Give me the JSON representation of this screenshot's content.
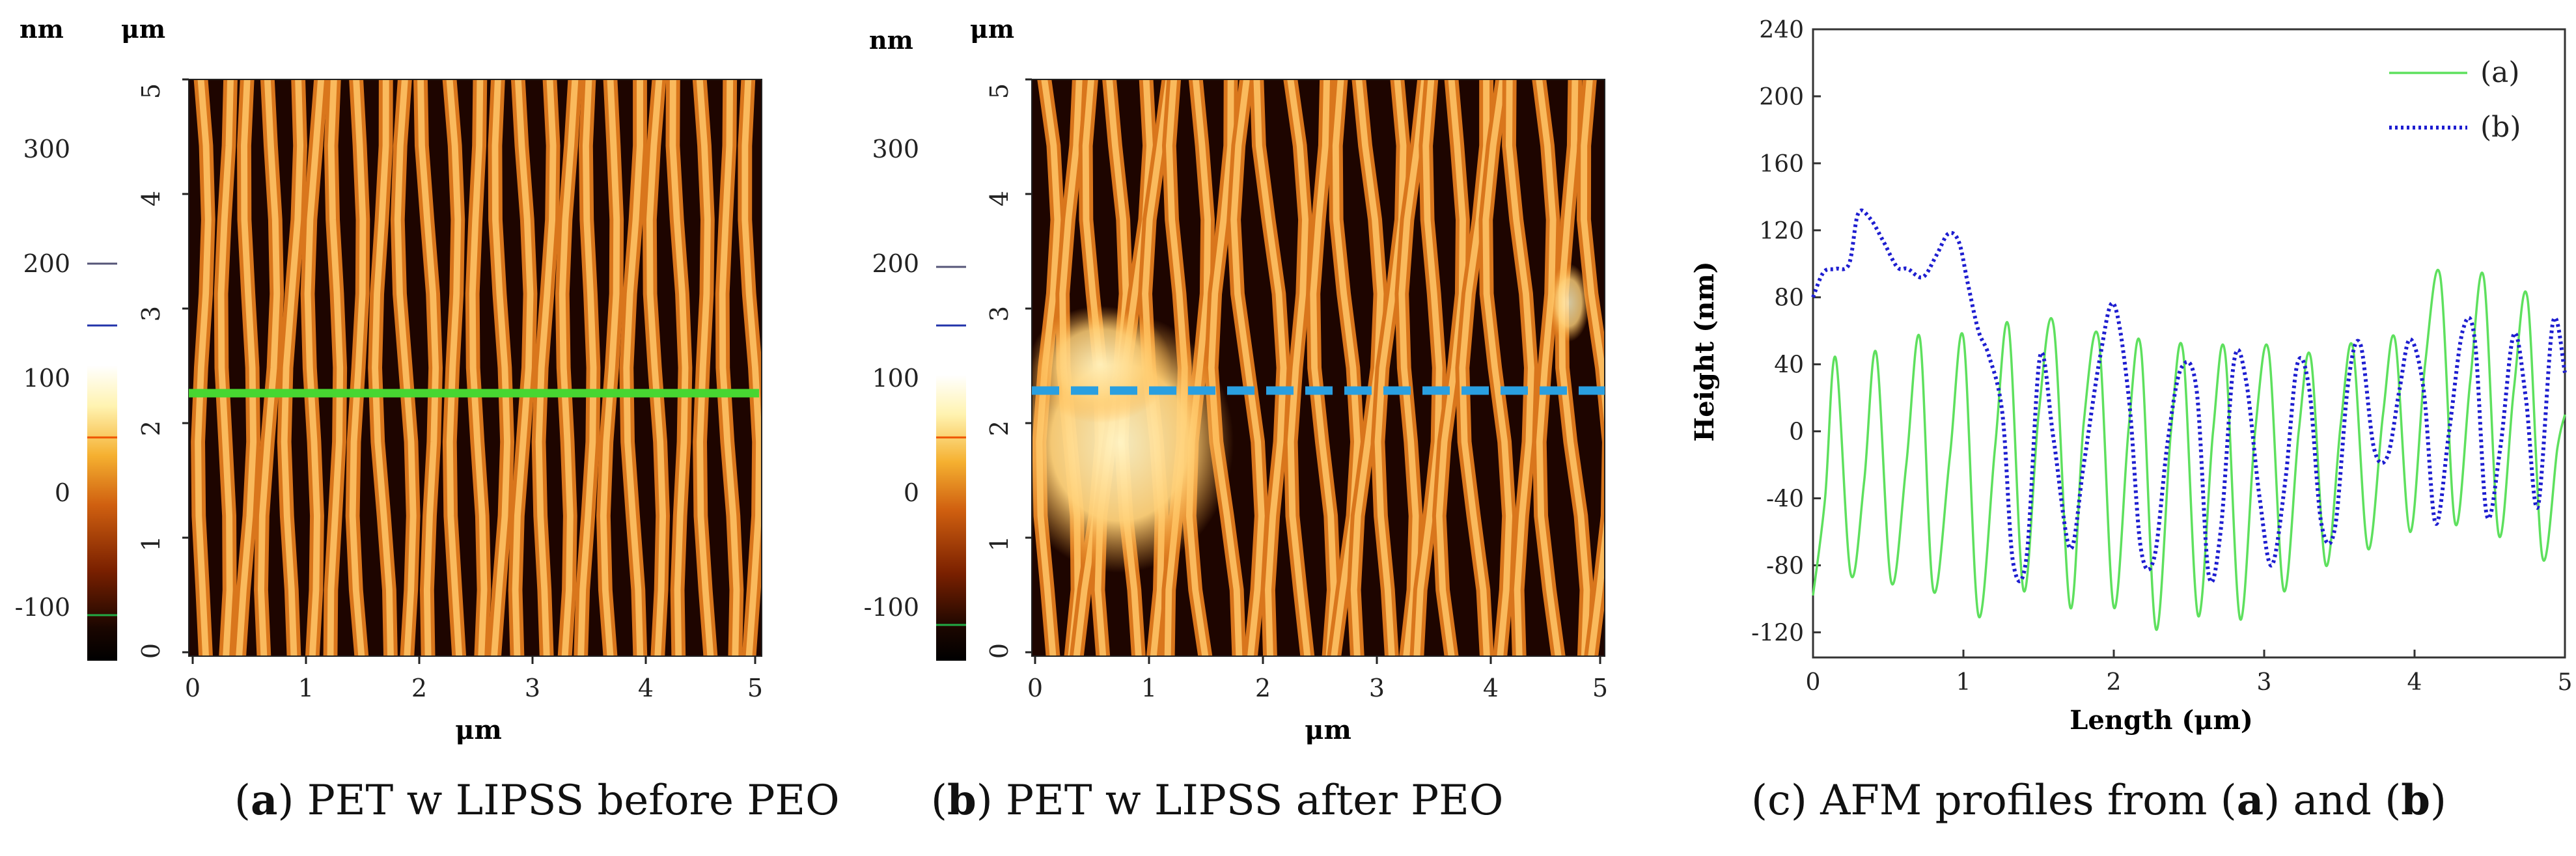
{
  "panels": {
    "a": {
      "letter": "a",
      "caption": "PET w LIPSS before PEO",
      "unit_nm": "nm",
      "unit_um_top": "μm",
      "unit_um_bottom": "μm",
      "colorbar_ticks": [
        "300",
        "200",
        "100",
        "0",
        "-100"
      ],
      "y_ticks": [
        "5",
        "4",
        "3",
        "2",
        "1",
        "0"
      ],
      "x_ticks": [
        "0",
        "1",
        "2",
        "3",
        "4",
        "5"
      ],
      "profile_line": "solid",
      "profile_color": "#47d631"
    },
    "b": {
      "letter": "b",
      "caption": "PET w LIPSS after PEO",
      "unit_nm": "nm",
      "unit_um_top": "μm",
      "unit_um_bottom": "μm",
      "colorbar_ticks": [
        "300",
        "200",
        "100",
        "0",
        "-100"
      ],
      "y_ticks": [
        "5",
        "4",
        "3",
        "2",
        "1",
        "0"
      ],
      "x_ticks": [
        "0",
        "1",
        "2",
        "3",
        "4",
        "5"
      ],
      "profile_line": "dashed",
      "profile_color": "#2a9fe0"
    },
    "c": {
      "letter": "c",
      "caption_prefix": "AFM profiles from (",
      "caption_a": "a",
      "caption_mid": ") and (",
      "caption_b": "b",
      "caption_suffix": ")"
    }
  },
  "chart_data": {
    "type": "line",
    "title": "",
    "xlabel": "Length (μm)",
    "ylabel": "Height (nm)",
    "xlim": [
      0,
      5
    ],
    "ylim": [
      -135,
      240
    ],
    "x_ticks": [
      0,
      1,
      2,
      3,
      4,
      5
    ],
    "y_ticks": [
      -120,
      -80,
      -40,
      0,
      40,
      80,
      120,
      160,
      200,
      240
    ],
    "legend_position": "top-right",
    "series": [
      {
        "name": "(a)",
        "color": "#5ee05e",
        "style": "solid",
        "x": [
          0,
          0.08,
          0.15,
          0.25,
          0.34,
          0.42,
          0.52,
          0.62,
          0.71,
          0.8,
          0.91,
          1.0,
          1.1,
          1.21,
          1.3,
          1.4,
          1.5,
          1.6,
          1.71,
          1.8,
          1.9,
          2.0,
          2.1,
          2.18,
          2.28,
          2.38,
          2.46,
          2.56,
          2.66,
          2.74,
          2.84,
          2.94,
          3.03,
          3.13,
          3.23,
          3.31,
          3.41,
          3.51,
          3.59,
          3.69,
          3.79,
          3.87,
          3.97,
          4.07,
          4.17,
          4.27,
          4.37,
          4.46,
          4.56,
          4.66,
          4.75,
          4.85,
          4.95,
          5.0
        ],
        "y": [
          -98,
          -40,
          44,
          -85,
          -30,
          47,
          -90,
          -20,
          56,
          -95,
          -15,
          56,
          -110,
          -10,
          63,
          -95,
          10,
          63,
          -105,
          5,
          55,
          -105,
          3,
          50,
          -118,
          0,
          48,
          -110,
          0,
          47,
          -112,
          0,
          48,
          -95,
          0,
          44,
          -80,
          5,
          50,
          -70,
          10,
          55,
          -60,
          40,
          93,
          -55,
          30,
          92,
          -62,
          25,
          80,
          -75,
          -10,
          10
        ]
      },
      {
        "name": "(b)",
        "color": "#1e1ed0",
        "style": "dotted",
        "x": [
          0,
          0.07,
          0.15,
          0.24,
          0.3,
          0.38,
          0.47,
          0.56,
          0.63,
          0.73,
          0.82,
          0.9,
          0.97,
          1.03,
          1.1,
          1.17,
          1.26,
          1.33,
          1.42,
          1.51,
          1.6,
          1.71,
          1.8,
          1.91,
          2.0,
          2.1,
          2.18,
          2.27,
          2.36,
          2.45,
          2.55,
          2.63,
          2.71,
          2.8,
          2.88,
          2.97,
          3.05,
          3.14,
          3.22,
          3.3,
          3.38,
          3.47,
          3.56,
          3.64,
          3.73,
          3.82,
          3.9,
          3.97,
          4.06,
          4.14,
          4.23,
          4.32,
          4.4,
          4.48,
          4.57,
          4.66,
          4.74,
          4.82,
          4.92,
          5.0
        ],
        "y": [
          80,
          95,
          97,
          100,
          130,
          127,
          113,
          98,
          97,
          92,
          105,
          118,
          113,
          88,
          60,
          45,
          10,
          -78,
          -75,
          45,
          -5,
          -70,
          -20,
          45,
          76,
          20,
          -70,
          -75,
          -5,
          38,
          25,
          -85,
          -60,
          42,
          30,
          -40,
          -80,
          -30,
          40,
          25,
          -55,
          -58,
          30,
          52,
          -10,
          -15,
          25,
          55,
          25,
          -55,
          0,
          60,
          55,
          -50,
          -10,
          58,
          20,
          -45,
          65,
          35
        ]
      }
    ]
  }
}
